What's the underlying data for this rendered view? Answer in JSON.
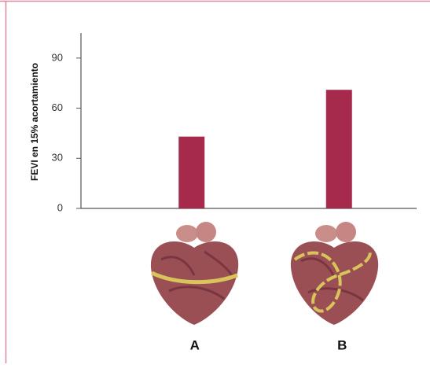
{
  "chart_data": {
    "type": "bar",
    "y_label": "FEVI en 15% acortamiento",
    "categories": [
      "A",
      "B"
    ],
    "values": [
      43,
      71
    ],
    "color": "#a52a4c",
    "ylim": [
      0,
      105
    ],
    "yticks": [
      0,
      30,
      60,
      90
    ],
    "grid": false
  }
}
